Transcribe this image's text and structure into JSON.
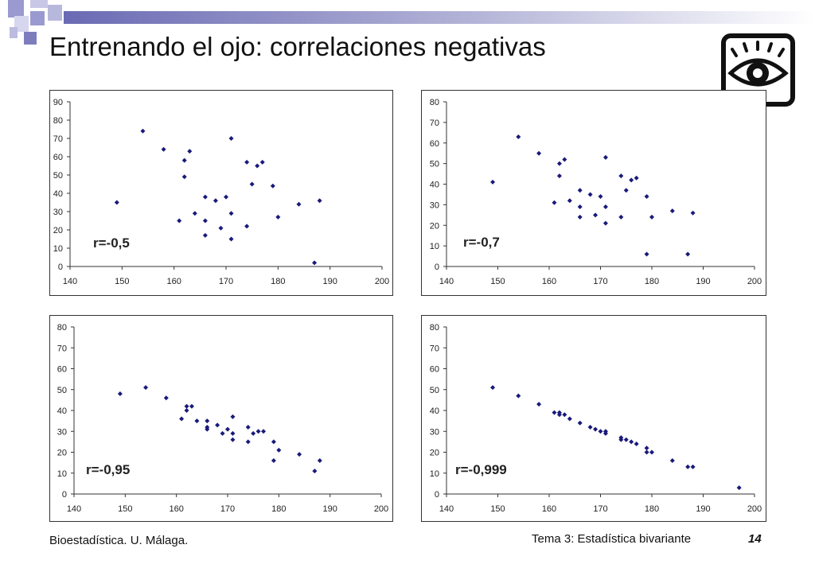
{
  "slide": {
    "title": "Entrenando el ojo: correlaciones negativas",
    "footer_left": "Bioestadística. U. Málaga.",
    "footer_right": "Tema 3: Estadística bivariante",
    "page_number": "14",
    "icon": "eye-icon",
    "colors": {
      "marker": "#1a1a7a",
      "deco": "#7d7dbe"
    }
  },
  "chart_data": [
    {
      "type": "scatter",
      "annotation": "r=-0,5",
      "xlim": [
        140,
        200
      ],
      "ylim": [
        0,
        90
      ],
      "xticks": [
        140,
        150,
        160,
        170,
        180,
        190,
        200
      ],
      "yticks": [
        0,
        10,
        20,
        30,
        40,
        50,
        60,
        70,
        80,
        90
      ],
      "points": [
        [
          149,
          35
        ],
        [
          154,
          74
        ],
        [
          158,
          64
        ],
        [
          161,
          25
        ],
        [
          162,
          58
        ],
        [
          162,
          49
        ],
        [
          163,
          63
        ],
        [
          164,
          29
        ],
        [
          166,
          38
        ],
        [
          166,
          25
        ],
        [
          166,
          17
        ],
        [
          168,
          36
        ],
        [
          169,
          21
        ],
        [
          170,
          38
        ],
        [
          171,
          70
        ],
        [
          171,
          29
        ],
        [
          171,
          15
        ],
        [
          174,
          57
        ],
        [
          174,
          22
        ],
        [
          175,
          45
        ],
        [
          176,
          55
        ],
        [
          177,
          57
        ],
        [
          179,
          44
        ],
        [
          180,
          27
        ],
        [
          184,
          34
        ],
        [
          187,
          2
        ],
        [
          188,
          36
        ]
      ]
    },
    {
      "type": "scatter",
      "annotation": "r=-0,7",
      "xlim": [
        140,
        200
      ],
      "ylim": [
        0,
        80
      ],
      "xticks": [
        140,
        150,
        160,
        170,
        180,
        190,
        200
      ],
      "yticks": [
        0,
        10,
        20,
        30,
        40,
        50,
        60,
        70,
        80
      ],
      "points": [
        [
          149,
          41
        ],
        [
          154,
          63
        ],
        [
          158,
          55
        ],
        [
          161,
          31
        ],
        [
          162,
          50
        ],
        [
          162,
          44
        ],
        [
          163,
          52
        ],
        [
          164,
          32
        ],
        [
          166,
          37
        ],
        [
          166,
          29
        ],
        [
          166,
          24
        ],
        [
          168,
          35
        ],
        [
          169,
          25
        ],
        [
          170,
          34
        ],
        [
          171,
          53
        ],
        [
          171,
          29
        ],
        [
          171,
          21
        ],
        [
          174,
          44
        ],
        [
          174,
          24
        ],
        [
          175,
          37
        ],
        [
          176,
          42
        ],
        [
          177,
          43
        ],
        [
          179,
          34
        ],
        [
          179,
          6
        ],
        [
          180,
          24
        ],
        [
          184,
          27
        ],
        [
          187,
          6
        ],
        [
          188,
          26
        ]
      ]
    },
    {
      "type": "scatter",
      "annotation": "r=-0,95",
      "xlim": [
        140,
        200
      ],
      "ylim": [
        0,
        80
      ],
      "xticks": [
        140,
        150,
        160,
        170,
        180,
        190,
        200
      ],
      "yticks": [
        0,
        10,
        20,
        30,
        40,
        50,
        60,
        70,
        80
      ],
      "points": [
        [
          149,
          48
        ],
        [
          154,
          51
        ],
        [
          158,
          46
        ],
        [
          161,
          36
        ],
        [
          162,
          42
        ],
        [
          162,
          40
        ],
        [
          163,
          42
        ],
        [
          164,
          35
        ],
        [
          166,
          35
        ],
        [
          166,
          32
        ],
        [
          166,
          31
        ],
        [
          168,
          33
        ],
        [
          169,
          29
        ],
        [
          170,
          31
        ],
        [
          171,
          37
        ],
        [
          171,
          29
        ],
        [
          171,
          26
        ],
        [
          174,
          32
        ],
        [
          174,
          25
        ],
        [
          175,
          29
        ],
        [
          176,
          30
        ],
        [
          177,
          30
        ],
        [
          179,
          25
        ],
        [
          179,
          16
        ],
        [
          180,
          21
        ],
        [
          184,
          19
        ],
        [
          187,
          11
        ],
        [
          188,
          16
        ]
      ]
    },
    {
      "type": "scatter",
      "annotation": "r=-0,999",
      "xlim": [
        140,
        200
      ],
      "ylim": [
        0,
        80
      ],
      "xticks": [
        140,
        150,
        160,
        170,
        180,
        190,
        200
      ],
      "yticks": [
        0,
        10,
        20,
        30,
        40,
        50,
        60,
        70,
        80
      ],
      "points": [
        [
          149,
          51
        ],
        [
          154,
          47
        ],
        [
          158,
          43
        ],
        [
          161,
          39
        ],
        [
          162,
          39
        ],
        [
          162,
          38
        ],
        [
          163,
          38
        ],
        [
          164,
          36
        ],
        [
          166,
          34
        ],
        [
          168,
          32
        ],
        [
          169,
          31
        ],
        [
          170,
          30
        ],
        [
          171,
          30
        ],
        [
          171,
          29
        ],
        [
          174,
          27
        ],
        [
          174,
          26
        ],
        [
          175,
          26
        ],
        [
          176,
          25
        ],
        [
          177,
          24
        ],
        [
          179,
          22
        ],
        [
          179,
          20
        ],
        [
          180,
          20
        ],
        [
          184,
          16
        ],
        [
          187,
          13
        ],
        [
          188,
          13
        ],
        [
          197,
          3
        ]
      ]
    }
  ]
}
